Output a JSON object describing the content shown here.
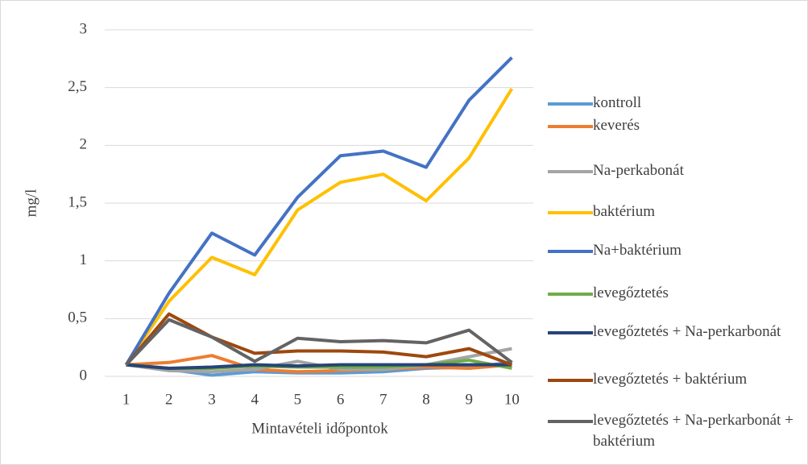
{
  "chart_data": {
    "type": "line",
    "y_label": "mg/l",
    "x_label": "Mintavételi időpontok",
    "categories": [
      "1",
      "2",
      "3",
      "4",
      "5",
      "6",
      "7",
      "8",
      "9",
      "10"
    ],
    "ylim": [
      0,
      3
    ],
    "yticks": [
      0,
      {
        "value": 0.5,
        "label": "0,5"
      },
      1,
      {
        "value": 1.5,
        "label": "1,5"
      },
      2,
      {
        "value": 2.5,
        "label": "2,5"
      },
      3
    ],
    "grid": true,
    "legend": "right",
    "series": [
      {
        "name": "kontroll",
        "color": "#5b9bd5",
        "values": [
          0.1,
          0.06,
          0.01,
          0.04,
          0.03,
          0.03,
          0.04,
          0.07,
          0.08,
          0.12
        ]
      },
      {
        "name": "keverés",
        "color": "#ed7d31",
        "values": [
          0.1,
          0.12,
          0.18,
          0.06,
          0.04,
          0.05,
          0.06,
          0.08,
          0.07,
          0.1
        ]
      },
      {
        "name": "Na-perkabonát",
        "color": "#a5a5a5",
        "values": [
          0.1,
          0.05,
          0.04,
          0.06,
          0.13,
          0.06,
          0.06,
          0.1,
          0.17,
          0.24
        ]
      },
      {
        "name": "baktérium",
        "color": "#ffc000",
        "values": [
          0.1,
          0.65,
          1.03,
          0.88,
          1.44,
          1.68,
          1.75,
          1.52,
          1.89,
          2.49
        ]
      },
      {
        "name": "Na+baktérium",
        "color": "#4472c4",
        "values": [
          0.1,
          0.72,
          1.24,
          1.05,
          1.55,
          1.91,
          1.95,
          1.81,
          2.39,
          2.76
        ]
      },
      {
        "name": "levegőztetés",
        "color": "#70ad47",
        "values": [
          0.1,
          0.07,
          0.07,
          0.09,
          0.08,
          0.08,
          0.08,
          0.1,
          0.14,
          0.07
        ]
      },
      {
        "name": "levegőztetés + Na-perkarbonát",
        "color": "#264478",
        "values": [
          0.1,
          0.07,
          0.08,
          0.1,
          0.09,
          0.1,
          0.1,
          0.1,
          0.1,
          0.1
        ]
      },
      {
        "name": "levegőztetés + baktérium",
        "color": "#9e480e",
        "values": [
          0.1,
          0.54,
          0.34,
          0.2,
          0.22,
          0.22,
          0.21,
          0.17,
          0.24,
          0.1
        ]
      },
      {
        "name": "levegőztetés + Na-perkarbonát + baktérium",
        "color": "#636363",
        "values": [
          0.1,
          0.49,
          0.34,
          0.13,
          0.33,
          0.3,
          0.31,
          0.29,
          0.4,
          0.12
        ]
      }
    ]
  }
}
